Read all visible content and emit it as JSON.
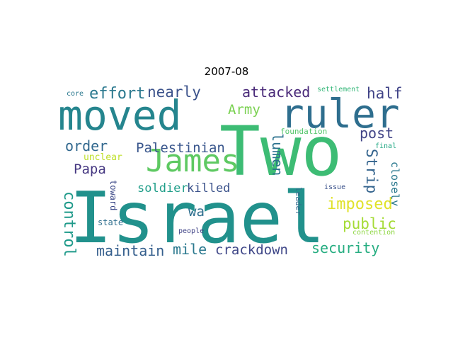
{
  "title": "2007-08",
  "words": [
    {
      "text": "Israel",
      "color": "#21918c",
      "orientation": "horizontal"
    },
    {
      "text": "Two",
      "color": "#3dbc74",
      "orientation": "horizontal"
    },
    {
      "text": "moved",
      "color": "#25858e",
      "orientation": "horizontal"
    },
    {
      "text": "ruler",
      "color": "#2e6e8e",
      "orientation": "horizontal"
    },
    {
      "text": "James",
      "color": "#5ec962",
      "orientation": "horizontal"
    },
    {
      "text": "effort",
      "color": "#2a788e",
      "orientation": "horizontal"
    },
    {
      "text": "nearly",
      "color": "#3b528b",
      "orientation": "horizontal"
    },
    {
      "text": "attacked",
      "color": "#482878",
      "orientation": "horizontal"
    },
    {
      "text": "half",
      "color": "#404387",
      "orientation": "horizontal"
    },
    {
      "text": "Army",
      "color": "#7ad151",
      "orientation": "horizontal"
    },
    {
      "text": "post",
      "color": "#414487",
      "orientation": "horizontal"
    },
    {
      "text": "order",
      "color": "#31688e",
      "orientation": "horizontal"
    },
    {
      "text": "Palestinian",
      "color": "#39568c",
      "orientation": "horizontal"
    },
    {
      "text": "Papa",
      "color": "#453781",
      "orientation": "horizontal"
    },
    {
      "text": "lumen",
      "color": "#2c728e",
      "orientation": "vertical"
    },
    {
      "text": "Strip",
      "color": "#33638d",
      "orientation": "vertical"
    },
    {
      "text": "closely",
      "color": "#2a788e",
      "orientation": "vertical"
    },
    {
      "text": "final",
      "color": "#22a884",
      "orientation": "horizontal"
    },
    {
      "text": "issue",
      "color": "#3b528b",
      "orientation": "horizontal"
    },
    {
      "text": "settlement",
      "color": "#35b779",
      "orientation": "horizontal"
    },
    {
      "text": "foundation",
      "color": "#52c569",
      "orientation": "horizontal"
    },
    {
      "text": "core",
      "color": "#2a788e",
      "orientation": "horizontal"
    },
    {
      "text": "unclear",
      "color": "#bddf26",
      "orientation": "horizontal"
    },
    {
      "text": "soldier",
      "color": "#1f9e89",
      "orientation": "horizontal"
    },
    {
      "text": "killed",
      "color": "#3b528b",
      "orientation": "horizontal"
    },
    {
      "text": "imposed",
      "color": "#e0e22a",
      "orientation": "horizontal"
    },
    {
      "text": "public",
      "color": "#a5db36",
      "orientation": "horizontal"
    },
    {
      "text": "contention",
      "color": "#8fd744",
      "orientation": "horizontal"
    },
    {
      "text": "wa",
      "color": "#2e6e8e",
      "orientation": "horizontal"
    },
    {
      "text": "leader",
      "color": "#31688e",
      "orientation": "vertical"
    },
    {
      "text": "toward",
      "color": "#3e4a89",
      "orientation": "vertical"
    },
    {
      "text": "state",
      "color": "#2e6e8e",
      "orientation": "horizontal"
    },
    {
      "text": "people",
      "color": "#414487",
      "orientation": "horizontal"
    },
    {
      "text": "control",
      "color": "#1f9a8a",
      "orientation": "vertical"
    },
    {
      "text": "maintain",
      "color": "#355f8d",
      "orientation": "horizontal"
    },
    {
      "text": "mile",
      "color": "#2a788e",
      "orientation": "horizontal"
    },
    {
      "text": "crackdown",
      "color": "#3f4788",
      "orientation": "horizontal"
    },
    {
      "text": "security",
      "color": "#26ad81",
      "orientation": "horizontal"
    }
  ]
}
